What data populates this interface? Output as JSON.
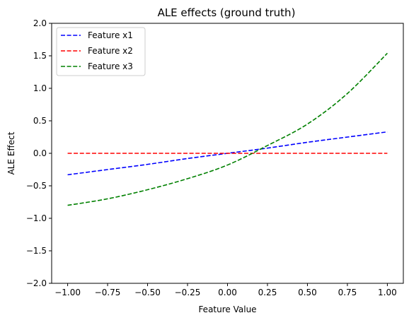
{
  "chart_data": {
    "type": "line",
    "title": "ALE effects (ground truth)",
    "xlabel": "Feature Value",
    "ylabel": "ALE Effect",
    "xlim": [
      -1.1,
      1.1
    ],
    "ylim": [
      -2.0,
      2.0
    ],
    "x_ticks": [
      -1.0,
      -0.75,
      -0.5,
      -0.25,
      0.0,
      0.25,
      0.5,
      0.75,
      1.0
    ],
    "x_tick_labels": [
      "−1.00",
      "−0.75",
      "−0.50",
      "−0.25",
      "0.00",
      "0.25",
      "0.50",
      "0.75",
      "1.00"
    ],
    "y_ticks": [
      -2.0,
      -1.5,
      -1.0,
      -0.5,
      0.0,
      0.5,
      1.0,
      1.5,
      2.0
    ],
    "y_tick_labels": [
      "−2.0",
      "−1.5",
      "−1.0",
      "−0.5",
      "0.0",
      "0.5",
      "1.0",
      "1.5",
      "2.0"
    ],
    "grid": false,
    "legend_position": "top-left",
    "line_style": "dashed",
    "series": [
      {
        "name": "Feature x1",
        "color": "#0000ff",
        "x": [
          -1.0,
          -0.75,
          -0.5,
          -0.25,
          0.0,
          0.25,
          0.5,
          0.75,
          1.0
        ],
        "y": [
          -0.33,
          -0.25,
          -0.17,
          -0.08,
          0.0,
          0.08,
          0.17,
          0.25,
          0.33
        ]
      },
      {
        "name": "Feature x2",
        "color": "#ff0000",
        "x": [
          -1.0,
          -0.75,
          -0.5,
          -0.25,
          0.0,
          0.25,
          0.5,
          0.75,
          1.0
        ],
        "y": [
          0.0,
          0.0,
          0.0,
          0.0,
          0.0,
          0.0,
          0.0,
          0.0,
          0.0
        ]
      },
      {
        "name": "Feature x3",
        "color": "#008000",
        "x": [
          -1.0,
          -0.75,
          -0.5,
          -0.25,
          0.0,
          0.25,
          0.5,
          0.75,
          1.0
        ],
        "y": [
          -0.8,
          -0.7,
          -0.56,
          -0.39,
          -0.18,
          0.12,
          0.45,
          0.92,
          1.54
        ]
      }
    ]
  }
}
